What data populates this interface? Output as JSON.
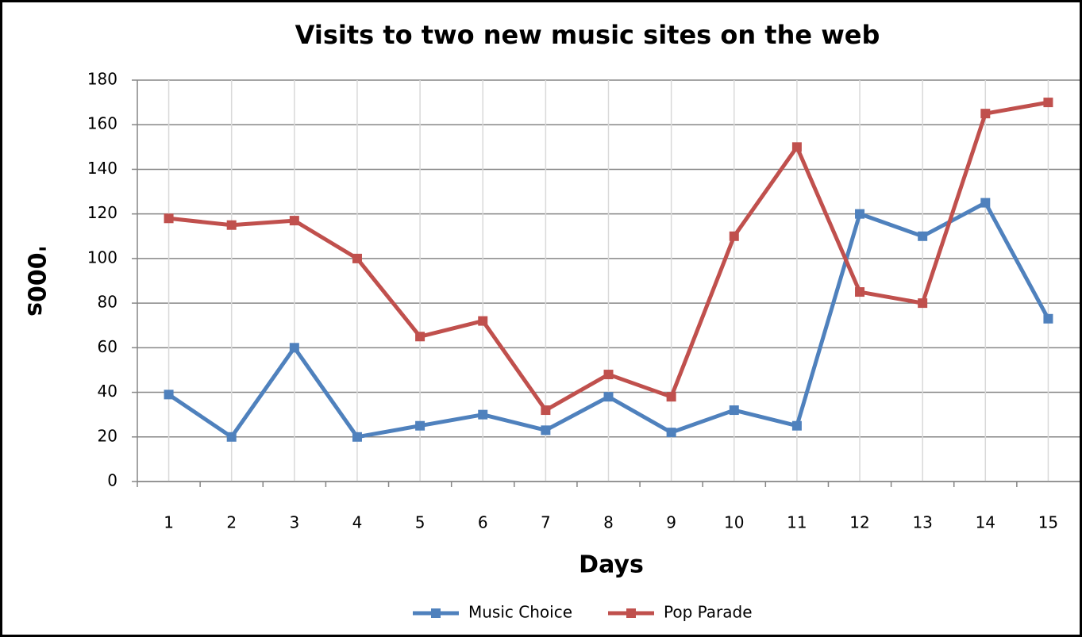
{
  "chart_data": {
    "type": "line",
    "title": "Visits to two new music sites on the web",
    "x_label": "Days",
    "y_label": "'000s",
    "categories": [
      1,
      2,
      3,
      4,
      5,
      6,
      7,
      8,
      9,
      10,
      11,
      12,
      13,
      14,
      15
    ],
    "series": [
      {
        "name": "Music Choice",
        "color": "#4f81bd",
        "values": [
          39,
          20,
          60,
          20,
          25,
          30,
          23,
          38,
          22,
          32,
          25,
          120,
          110,
          125,
          73
        ]
      },
      {
        "name": "Pop Parade",
        "color": "#c0504d",
        "values": [
          118,
          115,
          117,
          100,
          65,
          72,
          32,
          48,
          38,
          110,
          150,
          85,
          80,
          165,
          170
        ]
      }
    ],
    "ylim": [
      0,
      180
    ],
    "yticks": [
      0,
      20,
      40,
      60,
      80,
      100,
      120,
      140,
      160,
      180
    ],
    "grid": true,
    "legend": "bottom"
  }
}
